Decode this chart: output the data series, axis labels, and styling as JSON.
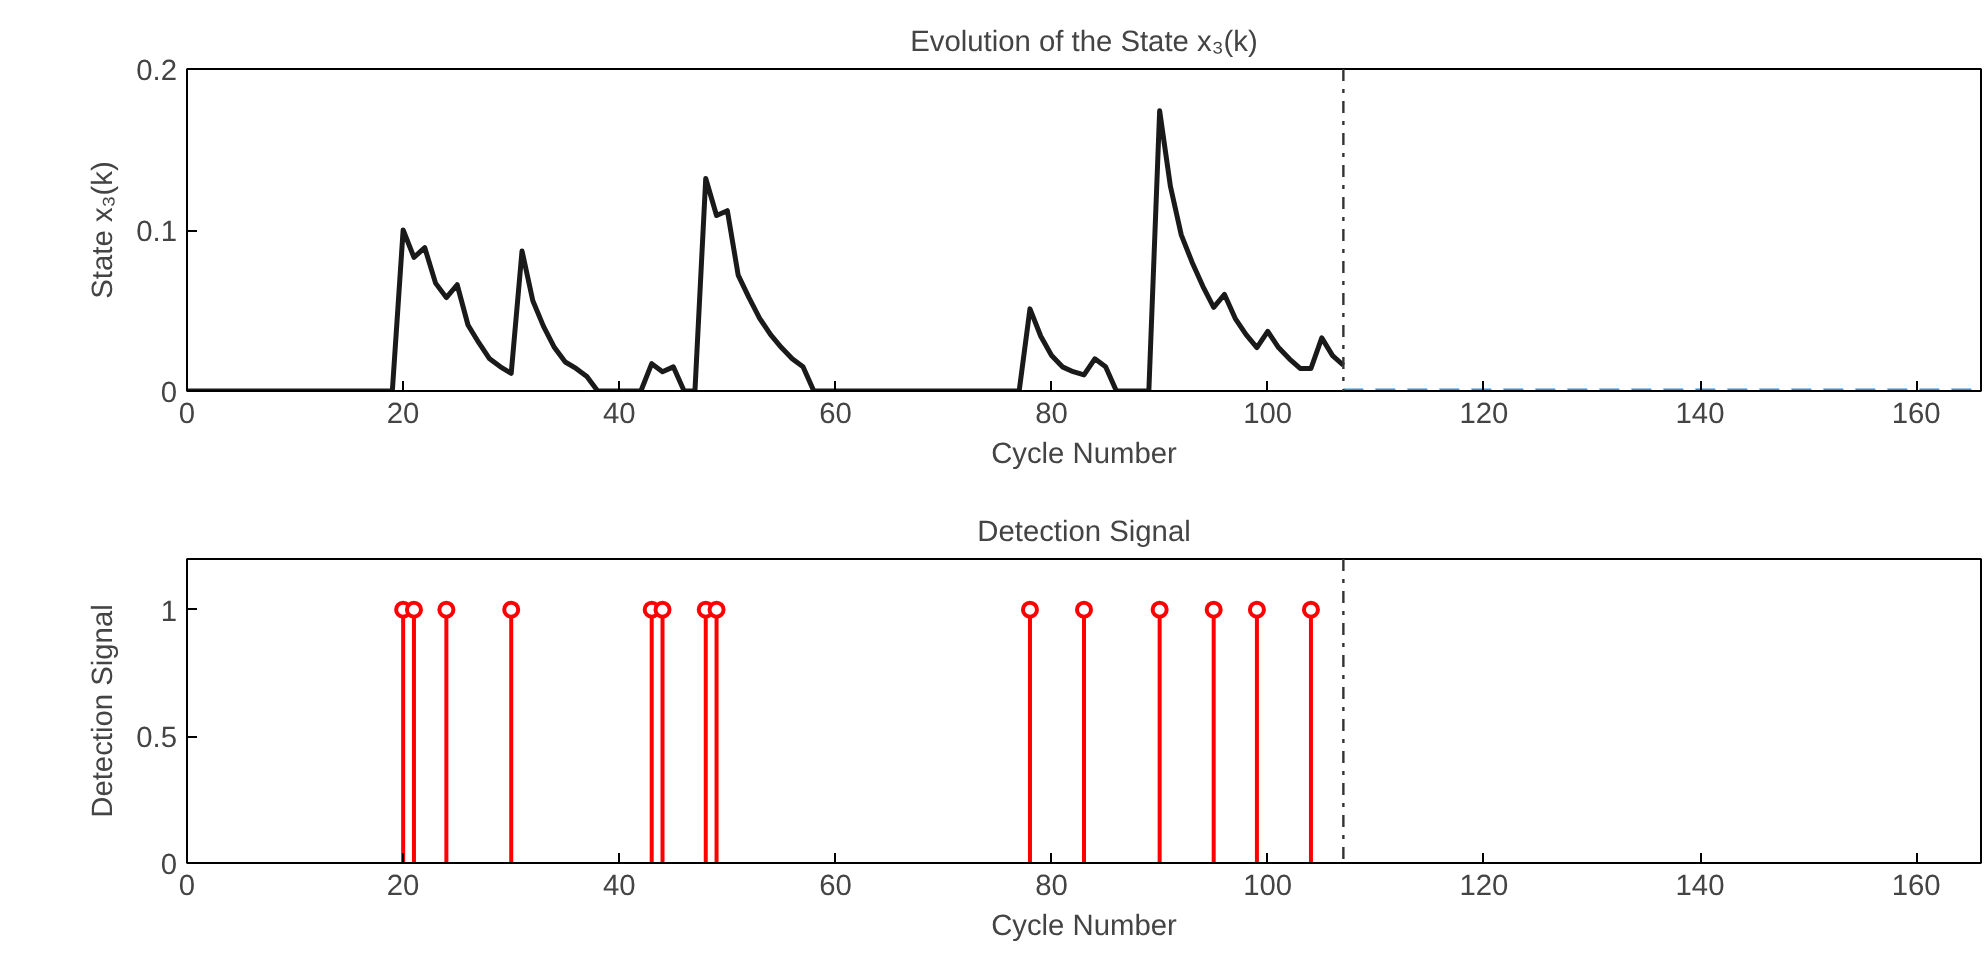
{
  "chart_data": [
    {
      "type": "line",
      "title": "Evolution of the State x₃(k)",
      "xlabel": "Cycle Number",
      "ylabel": "State x₃(k)",
      "xlim": [
        0,
        166
      ],
      "ylim": [
        0,
        0.2
      ],
      "xticks": [
        0,
        20,
        40,
        60,
        80,
        100,
        120,
        140,
        160
      ],
      "yticks": [
        0,
        0.1,
        0.2
      ],
      "grid": false,
      "series": [
        {
          "color": "#1a1a1a",
          "line_style": "solid",
          "x": [
            0,
            19,
            20,
            21,
            22,
            23,
            24,
            25,
            26,
            27,
            28,
            29,
            30,
            31,
            32,
            33,
            34,
            35,
            36,
            37,
            38,
            42,
            43,
            44,
            45,
            46,
            47,
            48,
            49,
            50,
            51,
            52,
            53,
            54,
            55,
            56,
            57,
            58,
            77,
            78,
            79,
            80,
            81,
            82,
            83,
            84,
            85,
            86,
            89,
            90,
            91,
            92,
            93,
            94,
            95,
            96,
            97,
            98,
            99,
            100,
            101,
            102,
            103,
            104,
            105,
            106,
            107
          ],
          "values": [
            0,
            0,
            0.1,
            0.083,
            0.089,
            0.067,
            0.058,
            0.066,
            0.041,
            0.03,
            0.02,
            0.015,
            0.011,
            0.087,
            0.056,
            0.04,
            0.027,
            0.018,
            0.014,
            0.009,
            0,
            0,
            0.017,
            0.012,
            0.015,
            0,
            0,
            0.132,
            0.109,
            0.112,
            0.072,
            0.058,
            0.045,
            0.035,
            0.027,
            0.02,
            0.015,
            0,
            0,
            0.051,
            0.034,
            0.022,
            0.015,
            0.012,
            0.01,
            0.02,
            0.015,
            0,
            0,
            0.174,
            0.127,
            0.097,
            0.08,
            0.065,
            0.052,
            0.06,
            0.045,
            0.035,
            0.027,
            0.037,
            0.027,
            0.02,
            0.014,
            0.014,
            0.033,
            0.022,
            0.016
          ]
        },
        {
          "color": "#3a8fd9",
          "line_style": "dashed",
          "x": [
            107,
            166
          ],
          "values": [
            0,
            0
          ]
        }
      ],
      "ref_lines": [
        {
          "axis": "x",
          "value": 107,
          "color": "#333333",
          "line_style": "dashdot"
        }
      ]
    },
    {
      "type": "lollipop",
      "title": "Detection Signal",
      "xlabel": "Cycle Number",
      "ylabel": "Detection Signal",
      "xlim": [
        0,
        166
      ],
      "ylim": [
        0,
        1.2
      ],
      "xticks": [
        0,
        20,
        40,
        60,
        80,
        100,
        120,
        140,
        160
      ],
      "yticks": [
        0,
        0.5,
        1
      ],
      "grid": false,
      "marker": "circle",
      "series": [
        {
          "color": "#ff0000",
          "x": [
            20,
            21,
            24,
            30,
            43,
            44,
            48,
            49,
            78,
            83,
            90,
            95,
            99,
            104
          ],
          "values": [
            1,
            1,
            1,
            1,
            1,
            1,
            1,
            1,
            1,
            1,
            1,
            1,
            1,
            1
          ]
        }
      ],
      "ref_lines": [
        {
          "axis": "x",
          "value": 107,
          "color": "#333333",
          "line_style": "dashdot"
        }
      ]
    }
  ]
}
